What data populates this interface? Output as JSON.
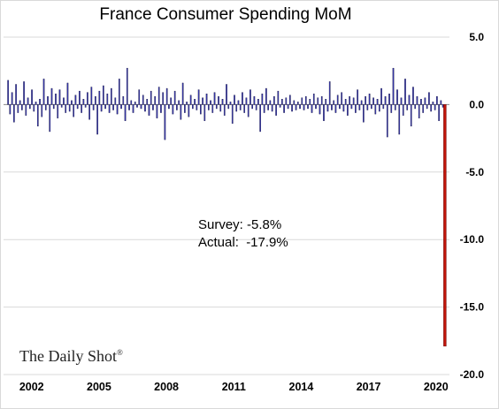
{
  "chart_data": {
    "type": "bar",
    "title": "France Consumer Spending MoM",
    "xlabel": "",
    "ylabel": "",
    "ylim": [
      -20,
      5
    ],
    "yticks": [
      "5.0",
      "0.0",
      "-5.0",
      "-10.0",
      "-15.0",
      "-20.0"
    ],
    "ytick_values": [
      5,
      0,
      -5,
      -10,
      -15,
      -20
    ],
    "y_axis_side": "right",
    "xticks": [
      "2002",
      "2005",
      "2008",
      "2011",
      "2014",
      "2017",
      "2020"
    ],
    "xtick_values": [
      2002,
      2005,
      2008,
      2011,
      2014,
      2017,
      2020
    ],
    "x_start": 2000.75,
    "x_end": 2020.6,
    "grid": "horizontal",
    "series": [
      {
        "values": [
          1.8,
          -0.7,
          0.9,
          -1.3,
          1.5,
          -0.6,
          0.3,
          -0.4,
          1.7,
          -0.8,
          0.5,
          -0.3,
          1.1,
          -0.5,
          0.2,
          -1.6,
          0.4,
          -0.9,
          1.9,
          -0.4,
          0.6,
          -2.0,
          1.2,
          -0.3,
          0.8,
          -1.0,
          1.1,
          -0.2,
          0.5,
          -0.6,
          1.6,
          -0.5,
          0.3,
          -0.9,
          0.7,
          -0.3,
          1.0,
          -0.6,
          0.4,
          -0.2,
          0.9,
          -1.1,
          1.3,
          -0.4,
          0.6,
          -2.2,
          1.0,
          -0.5,
          1.4,
          -0.3,
          0.8,
          -0.6,
          1.2,
          -0.4,
          0.5,
          -0.7,
          1.9,
          -0.3,
          0.6,
          -1.2,
          2.7,
          -0.4,
          0.3,
          -0.6,
          0.2,
          -0.2,
          1.1,
          -0.3,
          0.7,
          -0.5,
          0.4,
          -0.8,
          1.0,
          -0.4,
          0.6,
          -1.0,
          1.3,
          -0.6,
          0.9,
          -2.6,
          1.2,
          -0.3,
          0.5,
          -0.7,
          1.0,
          -0.4,
          0.3,
          -1.1,
          1.6,
          -0.6,
          0.2,
          -0.9,
          0.7,
          -0.3,
          0.4,
          -0.4,
          1.1,
          -0.7,
          0.5,
          -1.2,
          0.8,
          -0.4,
          0.3,
          -0.6,
          0.9,
          -0.3,
          0.6,
          -0.5,
          0.4,
          -0.8,
          1.5,
          -0.3,
          0.2,
          -1.4,
          0.7,
          -0.5,
          0.3,
          -0.4,
          0.9,
          -0.6,
          0.5,
          -0.9,
          1.1,
          -0.3,
          0.6,
          -0.4,
          0.4,
          -2.0,
          0.8,
          -0.6,
          1.2,
          -0.4,
          0.3,
          -0.5,
          0.6,
          -0.8,
          1.0,
          -0.2,
          0.4,
          -0.6,
          0.5,
          -0.3,
          0.7,
          -0.5,
          0.3,
          -0.4,
          0.2,
          -0.3,
          0.5,
          -0.4,
          0.6,
          -0.3,
          0.4,
          -0.6,
          0.8,
          -0.3,
          0.5,
          -0.7,
          0.6,
          -1.2,
          0.4,
          -0.5,
          1.7,
          -0.4,
          0.3,
          -0.6,
          0.7,
          -0.3,
          0.9,
          -0.5,
          0.4,
          -0.8,
          0.6,
          -0.3,
          0.5,
          -0.6,
          1.1,
          -0.4,
          0.3,
          -1.3,
          0.6,
          -0.4,
          0.8,
          -0.3,
          0.5,
          -0.7,
          0.4,
          -0.5,
          1.2,
          -0.3,
          0.6,
          -2.4,
          0.8,
          -0.6,
          2.7,
          -0.4,
          1.1,
          -2.2,
          0.5,
          -0.8,
          1.9,
          -0.4,
          0.7,
          -1.6,
          1.3,
          -0.3,
          0.6,
          -1.0,
          0.4,
          -0.6,
          0.5,
          -0.3,
          0.9,
          -0.5,
          0.2,
          -0.4,
          0.6,
          -1.2,
          0.3,
          -0.2,
          -17.9
        ],
        "highlight_last": true
      }
    ],
    "colors": {
      "bar_fill": "#3b3bb8",
      "bar_edge": "#101040",
      "highlight_fill": "#c0150a",
      "highlight_edge": "#5a0000",
      "grid": "#d9d9d9",
      "zero_line": "#888888"
    },
    "annotations": [
      "Survey: -5.8%",
      "Actual:  -17.9%"
    ]
  },
  "watermark": {
    "text": "The Daily Shot",
    "mark": "®"
  }
}
